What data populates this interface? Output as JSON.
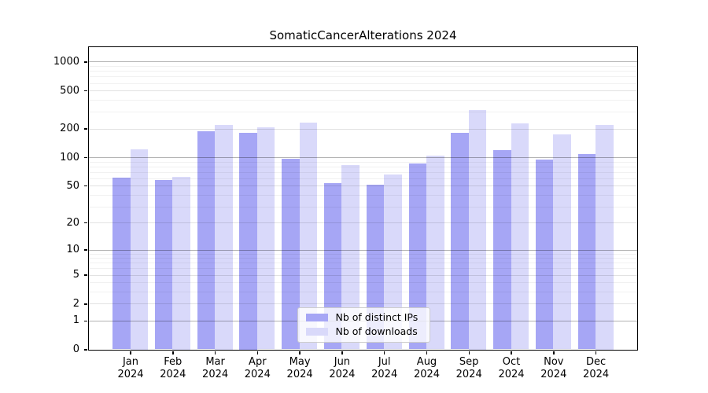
{
  "chart_data": {
    "type": "bar",
    "title": "SomaticCancerAlterations 2024",
    "xlabel": "",
    "ylabel": "",
    "categories": [
      "Jan",
      "Feb",
      "Mar",
      "Apr",
      "May",
      "Jun",
      "Jul",
      "Aug",
      "Sep",
      "Oct",
      "Nov",
      "Dec"
    ],
    "x_year_label": "2024",
    "series": [
      {
        "name": "Nb of distinct IPs",
        "color": "#a6a6f5",
        "values": [
          61,
          57,
          186,
          182,
          96,
          53,
          51,
          86,
          179,
          118,
          95,
          107
        ]
      },
      {
        "name": "Nb of downloads",
        "color": "#d9d9fa",
        "values": [
          122,
          62,
          220,
          207,
          230,
          83,
          66,
          104,
          315,
          227,
          173,
          220
        ]
      }
    ],
    "y_scale": "log1p",
    "y_ticks": [
      0,
      1,
      2,
      5,
      10,
      20,
      50,
      100,
      200,
      500,
      1000
    ],
    "y_ticks_dark_grid": [
      1,
      10,
      100,
      1000
    ],
    "y_ticks_light_grid": [
      2,
      5,
      20,
      50,
      200,
      500
    ],
    "y_minor_grid": [
      3,
      4,
      6,
      7,
      8,
      9,
      30,
      40,
      60,
      70,
      80,
      90,
      300,
      400,
      600,
      700,
      800,
      900
    ],
    "grid": "on",
    "legend_position": "lower center",
    "colors": {
      "background": "#ffffff",
      "spine": "#000000",
      "text": "#000000",
      "legend_border": "#cccccc"
    }
  }
}
